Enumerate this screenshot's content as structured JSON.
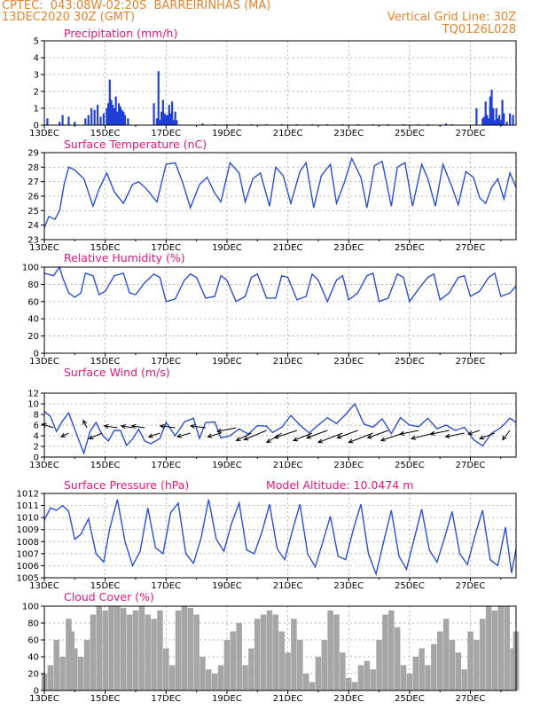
{
  "header": {
    "left_line1": "CPTEC:  043:08W-02:20S  BARREIRINHAS (MA)",
    "left_line2": "13DEC2020 30Z (GMT)",
    "right_line1": "Vertical Grid Line: 30Z",
    "right_line2": "TQ0126L028"
  },
  "colors": {
    "header": "#e8822a",
    "title": "#e8167a",
    "line": "#2a4fd6",
    "bar": "#1f3fd8",
    "cloud": "#a6a6a6",
    "arrow": "#000000"
  },
  "x_axis": {
    "labels": [
      "13DEC",
      "15DEC",
      "17DEC",
      "19DEC",
      "21DEC",
      "23DEC",
      "25DEC",
      "27DEC"
    ],
    "label_days": [
      0,
      2,
      4,
      6,
      8,
      10,
      12,
      14
    ],
    "total_days": 15.5
  },
  "chart_data": [
    {
      "type": "bar",
      "title": "Precipitation (mm/h)",
      "ylim": [
        0,
        5
      ],
      "yticks": [
        0,
        1,
        2,
        3,
        4,
        5
      ],
      "x": [
        0.1,
        0.5,
        0.6,
        0.8,
        1.0,
        1.35,
        1.45,
        1.55,
        1.65,
        1.75,
        1.85,
        1.95,
        2.05,
        2.1,
        2.15,
        2.2,
        2.25,
        2.3,
        2.35,
        2.4,
        2.45,
        2.5,
        2.55,
        2.6,
        2.65,
        2.75,
        3.6,
        3.7,
        3.75,
        3.8,
        3.85,
        3.9,
        3.95,
        4.0,
        4.05,
        4.1,
        4.15,
        4.2,
        4.25,
        4.3,
        4.35,
        5.2,
        5.6,
        6.0,
        6.4,
        6.8,
        7.3,
        7.8,
        8.3,
        8.8,
        9.3,
        9.8,
        10.3,
        10.8,
        11.3,
        11.8,
        12.3,
        12.6,
        13.2,
        13.4,
        14.2,
        14.4,
        14.45,
        14.5,
        14.55,
        14.6,
        14.65,
        14.7,
        14.75,
        14.8,
        14.85,
        14.9,
        14.95,
        15.0,
        15.05,
        15.1,
        15.2,
        15.3,
        15.4
      ],
      "values": [
        0.4,
        0.2,
        0.6,
        0.5,
        0.2,
        0.4,
        0.6,
        1.0,
        0.9,
        1.2,
        0.5,
        0.7,
        1.0,
        1.3,
        2.7,
        1.5,
        1.2,
        1.0,
        1.7,
        0.8,
        1.3,
        1.1,
        0.9,
        0.8,
        0.6,
        0.4,
        1.3,
        0.4,
        3.2,
        0.3,
        0.8,
        1.5,
        0.7,
        0.6,
        0.6,
        1.2,
        0.7,
        1.4,
        0.3,
        0.8,
        0.3,
        0.1,
        0.05,
        0.05,
        0.05,
        0.05,
        0.05,
        0.05,
        0.05,
        0.05,
        0.05,
        0.05,
        0.05,
        0.05,
        0.05,
        0.05,
        0.05,
        0.05,
        0.1,
        0.05,
        1.0,
        0.4,
        0.5,
        1.4,
        0.6,
        0.4,
        1.7,
        2.1,
        1.0,
        0.3,
        1.0,
        0.4,
        0.6,
        0.3,
        1.5,
        0.7,
        0.2,
        0.7,
        0.6
      ]
    },
    {
      "type": "line",
      "title": "Surface Temperature (nC)",
      "ylim": [
        23,
        29
      ],
      "yticks": [
        23,
        24,
        25,
        26,
        27,
        28,
        29
      ],
      "series": [
        {
          "x": [
            0,
            0.15,
            0.35,
            0.5,
            0.65,
            0.8,
            1.0,
            1.3,
            1.6,
            1.8,
            2.05,
            2.3,
            2.6,
            2.9,
            3.1,
            3.35,
            3.7,
            4.0,
            4.3,
            4.55,
            4.8,
            5.1,
            5.35,
            5.6,
            5.8,
            6.1,
            6.4,
            6.6,
            6.85,
            7.1,
            7.4,
            7.6,
            7.85,
            8.1,
            8.4,
            8.6,
            8.85,
            9.1,
            9.4,
            9.6,
            9.85,
            10.1,
            10.4,
            10.6,
            10.85,
            11.1,
            11.4,
            11.6,
            11.85,
            12.1,
            12.4,
            12.6,
            12.85,
            13.1,
            13.4,
            13.6,
            13.85,
            14.1,
            14.3,
            14.5,
            14.7,
            14.9,
            15.1,
            15.3,
            15.5
          ],
          "values": [
            23.8,
            24.6,
            24.4,
            25.0,
            26.8,
            28.0,
            27.8,
            27.2,
            25.3,
            26.5,
            27.6,
            26.3,
            25.5,
            26.8,
            27.0,
            26.5,
            25.6,
            28.2,
            28.3,
            26.9,
            25.2,
            26.8,
            27.3,
            26.2,
            25.6,
            28.3,
            27.6,
            25.6,
            27.2,
            27.6,
            25.3,
            28.0,
            27.4,
            25.5,
            27.7,
            28.3,
            25.2,
            27.4,
            28.2,
            25.5,
            26.9,
            28.6,
            27.3,
            25.2,
            28.1,
            28.4,
            25.3,
            28.0,
            28.3,
            25.3,
            28.2,
            27.2,
            25.3,
            28.2,
            26.6,
            25.4,
            27.7,
            27.3,
            25.9,
            25.5,
            26.6,
            27.2,
            25.8,
            27.6,
            26.6
          ]
        }
      ]
    },
    {
      "type": "line",
      "title": "Relative Humidity (%)",
      "ylim": [
        0,
        100
      ],
      "yticks": [
        0,
        20,
        40,
        60,
        80,
        100
      ],
      "series": [
        {
          "x": [
            0,
            0.3,
            0.5,
            0.6,
            0.8,
            1.0,
            1.2,
            1.35,
            1.6,
            1.8,
            2.0,
            2.3,
            2.6,
            2.8,
            3.0,
            3.3,
            3.6,
            3.8,
            4.0,
            4.3,
            4.6,
            4.8,
            5.0,
            5.3,
            5.6,
            5.8,
            6.0,
            6.3,
            6.6,
            6.8,
            7.0,
            7.3,
            7.6,
            7.8,
            8.0,
            8.3,
            8.6,
            8.8,
            9.0,
            9.3,
            9.6,
            9.8,
            10.0,
            10.3,
            10.6,
            10.8,
            11.0,
            11.3,
            11.6,
            11.8,
            12.0,
            12.3,
            12.6,
            12.8,
            13.0,
            13.3,
            13.6,
            13.8,
            14.0,
            14.3,
            14.6,
            14.8,
            15.0,
            15.3,
            15.5
          ],
          "values": [
            93,
            90,
            100,
            88,
            70,
            65,
            70,
            93,
            90,
            68,
            72,
            90,
            93,
            70,
            68,
            82,
            92,
            88,
            60,
            63,
            85,
            92,
            88,
            64,
            66,
            90,
            85,
            60,
            66,
            88,
            92,
            64,
            64,
            90,
            88,
            62,
            66,
            92,
            85,
            60,
            85,
            90,
            62,
            70,
            90,
            93,
            60,
            64,
            92,
            88,
            60,
            75,
            88,
            92,
            62,
            70,
            88,
            90,
            66,
            72,
            88,
            93,
            66,
            70,
            78
          ]
        }
      ]
    },
    {
      "type": "line",
      "title": "Surface Wind (m/s)",
      "ylim": [
        0,
        12
      ],
      "yticks": [
        0,
        2,
        4,
        6,
        8,
        10,
        12
      ],
      "series": [
        {
          "x": [
            0,
            0.2,
            0.4,
            0.6,
            0.8,
            1.0,
            1.3,
            1.5,
            1.7,
            1.9,
            2.1,
            2.3,
            2.5,
            2.7,
            2.9,
            3.1,
            3.3,
            3.5,
            3.8,
            4.0,
            4.3,
            4.6,
            4.9,
            5.1,
            5.3,
            5.6,
            5.8,
            6.1,
            6.4,
            6.7,
            7.0,
            7.3,
            7.5,
            7.8,
            8.1,
            8.4,
            8.7,
            9.0,
            9.3,
            9.6,
            9.9,
            10.2,
            10.5,
            10.8,
            11.1,
            11.4,
            11.7,
            12.0,
            12.3,
            12.6,
            12.9,
            13.2,
            13.5,
            13.8,
            14.1,
            14.4,
            14.7,
            15.0,
            15.3,
            15.5
          ],
          "values": [
            8.6,
            7.6,
            4.8,
            6.8,
            8.3,
            5.2,
            0.7,
            4.8,
            6.5,
            4.2,
            3.0,
            5.0,
            5.0,
            2.2,
            3.4,
            5.2,
            3.0,
            2.5,
            3.5,
            6.5,
            4.0,
            6.6,
            7.3,
            3.5,
            6.5,
            6.6,
            3.6,
            4.0,
            5.3,
            4.3,
            5.9,
            5.8,
            4.6,
            5.6,
            7.8,
            6.0,
            4.5,
            6.0,
            7.4,
            6.3,
            8.0,
            10.0,
            6.2,
            5.6,
            7.2,
            4.4,
            7.4,
            6.0,
            5.7,
            7.3,
            5.3,
            6.0,
            5.0,
            5.6,
            3.3,
            2.1,
            4.5,
            5.5,
            7.3,
            6.5
          ]
        }
      ],
      "wind_vectors": {
        "x": [
          0.3,
          0.8,
          1.4,
          1.9,
          2.4,
          2.9,
          3.3,
          3.8,
          4.3,
          4.8,
          5.3,
          5.8,
          6.3,
          6.8,
          7.3,
          7.8,
          8.3,
          8.8,
          9.3,
          9.8,
          10.3,
          10.8,
          11.3,
          11.8,
          12.3,
          12.8,
          13.3,
          13.8,
          14.3,
          14.8,
          15.3
        ],
        "y": [
          5.5,
          4.5,
          5.5,
          4.5,
          5.5,
          5.5,
          5.5,
          4.5,
          5.5,
          4.5,
          5.5,
          4.5,
          5.5,
          4.5,
          5.0,
          4.5,
          5.0,
          4.5,
          5.0,
          4.5,
          5.0,
          4.5,
          5.0,
          4.5,
          5.0,
          4.5,
          5.0,
          4.5,
          5.0,
          4.5,
          5.0
        ],
        "u": [
          -3.0,
          -2.0,
          -1.0,
          -3.5,
          -3.5,
          -3.0,
          -3.5,
          -3.0,
          -4.0,
          -3.5,
          -4.0,
          -3.5,
          -5.0,
          -4.0,
          -6.0,
          -4.0,
          -6.0,
          -5.0,
          -5.5,
          -6.5,
          -5.5,
          -6.5,
          -5.5,
          -6.0,
          -5.0,
          -6.0,
          -5.0,
          -5.0,
          -3.0,
          -4.0,
          -2.0
        ],
        "v": [
          1.0,
          -1.0,
          2.0,
          -1.5,
          0.5,
          0.5,
          0.5,
          -1.0,
          0.5,
          -1.0,
          0.5,
          -1.0,
          -1.0,
          -2.0,
          -2.5,
          -2.5,
          -2.0,
          -2.0,
          -2.0,
          -2.5,
          -2.0,
          -2.5,
          -2.0,
          -2.0,
          -1.0,
          -1.5,
          -1.0,
          -1.0,
          -1.0,
          -1.5,
          -2.5
        ]
      }
    },
    {
      "type": "line",
      "title": "Surface Pressure (hPa)",
      "annotation": "Model Altitude: 10.0474 m",
      "ylim": [
        1005,
        1012
      ],
      "yticks": [
        1005,
        1006,
        1007,
        1008,
        1009,
        1010,
        1011,
        1012
      ],
      "series": [
        {
          "x": [
            0,
            0.2,
            0.4,
            0.6,
            0.8,
            1.0,
            1.2,
            1.45,
            1.7,
            1.95,
            2.15,
            2.4,
            2.65,
            2.9,
            3.15,
            3.4,
            3.65,
            3.9,
            4.15,
            4.4,
            4.65,
            4.9,
            5.15,
            5.4,
            5.65,
            5.9,
            6.15,
            6.4,
            6.65,
            6.9,
            7.15,
            7.4,
            7.65,
            7.9,
            8.15,
            8.4,
            8.65,
            8.9,
            9.15,
            9.4,
            9.65,
            9.9,
            10.15,
            10.4,
            10.65,
            10.9,
            11.15,
            11.4,
            11.65,
            11.9,
            12.15,
            12.4,
            12.65,
            12.9,
            13.15,
            13.4,
            13.65,
            13.9,
            14.15,
            14.4,
            14.65,
            14.9,
            15.15,
            15.35,
            15.5
          ],
          "values": [
            1009.8,
            1010.8,
            1010.6,
            1011.0,
            1010.5,
            1008.2,
            1008.6,
            1009.9,
            1007.0,
            1006.3,
            1009.1,
            1011.5,
            1008.0,
            1006.0,
            1007.2,
            1010.8,
            1007.5,
            1007.0,
            1010.4,
            1011.2,
            1007.0,
            1006.2,
            1008.3,
            1011.5,
            1008.2,
            1007.2,
            1009.5,
            1011.2,
            1007.3,
            1007.0,
            1008.8,
            1011.1,
            1007.4,
            1006.5,
            1008.9,
            1011.1,
            1007.0,
            1005.9,
            1008.0,
            1010.1,
            1006.8,
            1006.5,
            1009.0,
            1011.1,
            1007.0,
            1005.3,
            1008.0,
            1010.6,
            1006.8,
            1005.7,
            1008.2,
            1010.7,
            1007.3,
            1006.3,
            1008.3,
            1010.5,
            1007.0,
            1006.1,
            1008.5,
            1010.6,
            1006.5,
            1006.0,
            1009.2,
            1005.4,
            1007.4
          ]
        }
      ]
    },
    {
      "type": "area",
      "title": "Cloud Cover (%)",
      "ylim": [
        0,
        100
      ],
      "yticks": [
        0,
        20,
        40,
        60,
        80,
        100
      ],
      "series": [
        {
          "x": [
            0,
            0.2,
            0.4,
            0.6,
            0.8,
            0.9,
            1.0,
            1.2,
            1.4,
            1.6,
            1.8,
            2.0,
            2.2,
            2.4,
            2.6,
            2.8,
            3.0,
            3.2,
            3.4,
            3.6,
            3.8,
            4.0,
            4.2,
            4.4,
            4.6,
            4.8,
            5.0,
            5.2,
            5.4,
            5.6,
            5.8,
            6.0,
            6.2,
            6.4,
            6.6,
            6.8,
            7.0,
            7.2,
            7.4,
            7.6,
            7.8,
            8.0,
            8.2,
            8.4,
            8.6,
            8.8,
            9.0,
            9.2,
            9.4,
            9.6,
            9.8,
            10.0,
            10.2,
            10.4,
            10.6,
            10.8,
            11.0,
            11.2,
            11.4,
            11.6,
            11.8,
            12.0,
            12.2,
            12.4,
            12.6,
            12.8,
            13.0,
            13.2,
            13.4,
            13.6,
            13.8,
            14.0,
            14.2,
            14.4,
            14.6,
            14.8,
            15.0,
            15.2,
            15.4,
            15.5
          ],
          "values": [
            20,
            30,
            60,
            40,
            85,
            70,
            50,
            40,
            60,
            90,
            100,
            95,
            100,
            100,
            98,
            90,
            95,
            100,
            90,
            85,
            95,
            50,
            30,
            95,
            100,
            98,
            90,
            40,
            25,
            20,
            30,
            60,
            70,
            80,
            30,
            50,
            85,
            90,
            95,
            90,
            70,
            45,
            85,
            60,
            20,
            10,
            40,
            60,
            95,
            90,
            45,
            15,
            10,
            30,
            35,
            25,
            60,
            90,
            95,
            75,
            30,
            20,
            40,
            50,
            30,
            55,
            70,
            85,
            60,
            45,
            25,
            70,
            60,
            85,
            100,
            95,
            100,
            100,
            50,
            70
          ]
        }
      ]
    }
  ]
}
